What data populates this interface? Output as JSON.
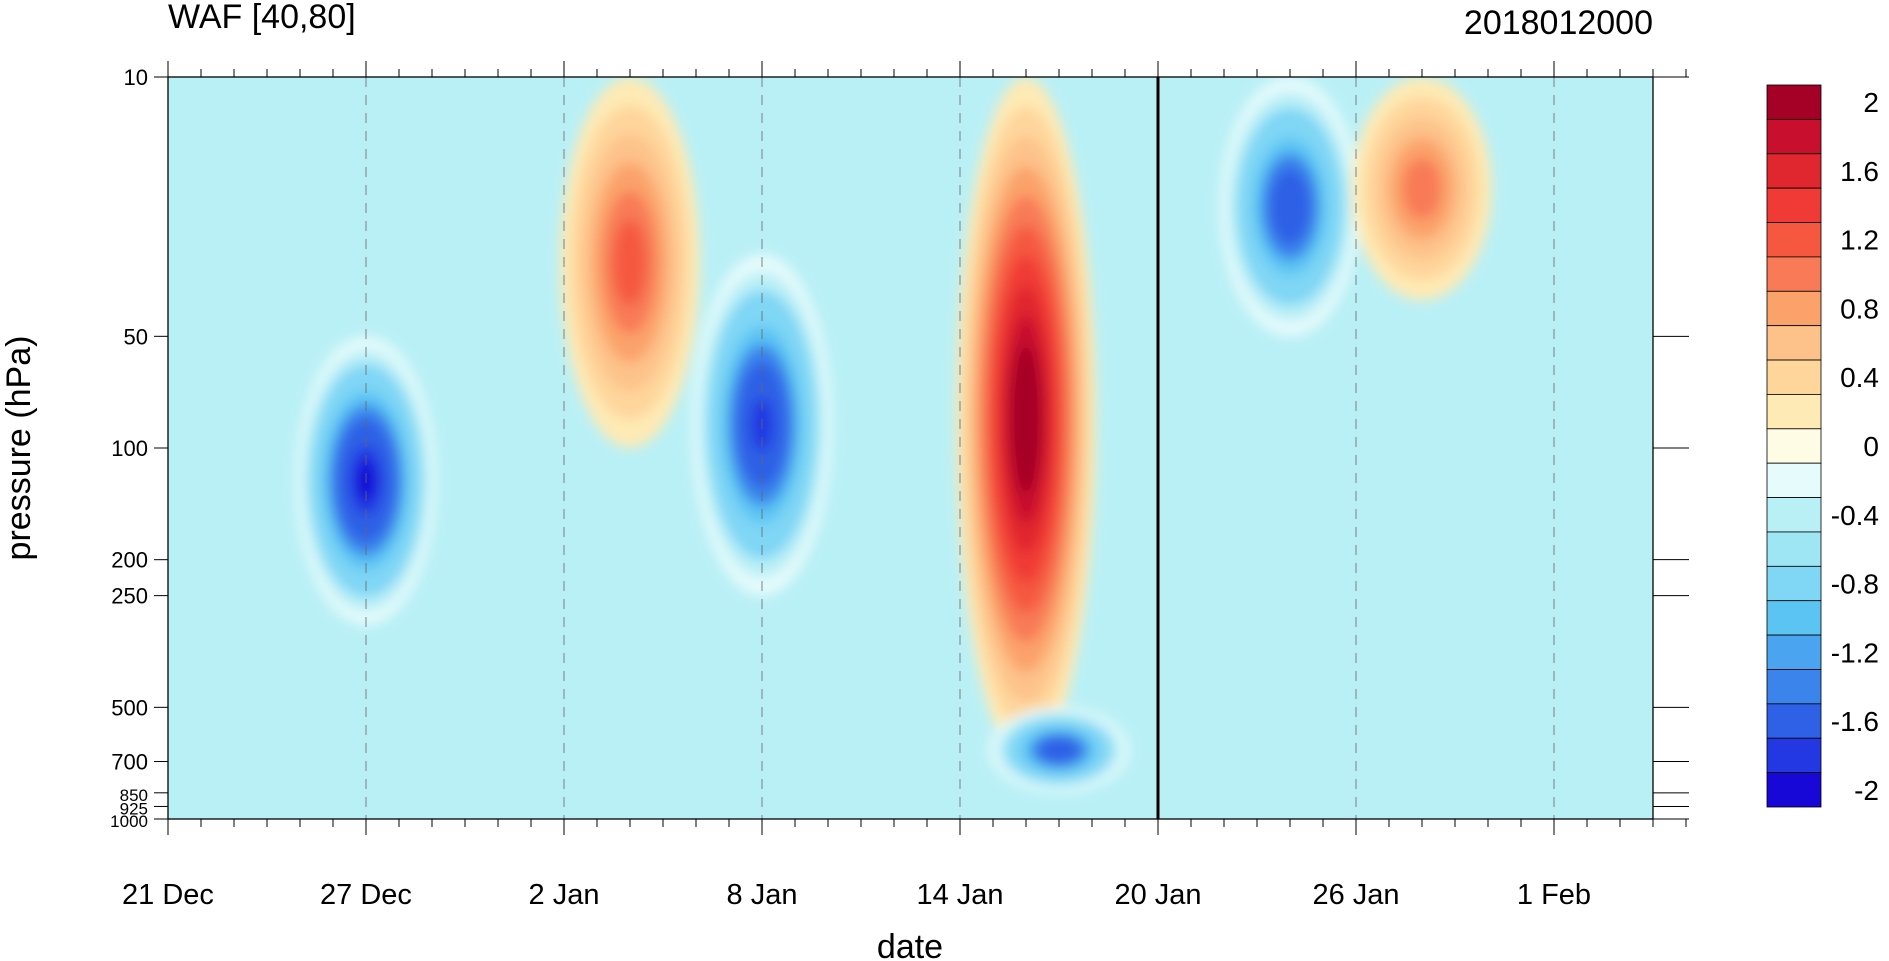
{
  "chart_data": {
    "type": "heatmap",
    "title": "WAF [40,80]",
    "subtitle": "2018012000",
    "xlabel": "date",
    "ylabel": "pressure (hPa)",
    "x_ticks": [
      "21 Dec",
      "27 Dec",
      "2 Jan",
      "8 Jan",
      "14 Jan",
      "20 Jan",
      "26 Jan",
      "1 Feb"
    ],
    "x_range": [
      "21 Dec",
      "5 Feb"
    ],
    "current_date": "20 Jan",
    "y_scale": "log",
    "y_ticks": [
      10,
      50,
      100,
      200,
      250,
      500,
      700,
      850,
      925,
      1000
    ],
    "y_range": [
      10,
      1000
    ],
    "colorbar": {
      "labels": [
        "2",
        "1.6",
        "1.2",
        "0.8",
        "0.4",
        "0",
        "-0.4",
        "-0.8",
        "-1.2",
        "-1.6",
        "-2"
      ],
      "levels": [
        2.0,
        1.8,
        1.6,
        1.4,
        1.2,
        1.0,
        0.8,
        0.6,
        0.4,
        0.2,
        0.0,
        -0.2,
        -0.4,
        -0.6,
        -0.8,
        -1.0,
        -1.2,
        -1.4,
        -1.6,
        -1.8,
        -2.0
      ],
      "colors": [
        "#a50026",
        "#c8102e",
        "#e0262f",
        "#f03a35",
        "#f5583f",
        "#f87a56",
        "#fba26a",
        "#fdc28a",
        "#fed59b",
        "#feeab4",
        "#fffce5",
        "#e6fbfc",
        "#b9f0f6",
        "#9fe6f5",
        "#7fd6f5",
        "#5cc4f3",
        "#4aa4ef",
        "#3b84eb",
        "#2f61e6",
        "#2337e2",
        "#1808d8"
      ]
    },
    "grid": "dashed vertical lines at date ticks",
    "features": [
      {
        "name": "negative",
        "date": "27 Dec",
        "p_top": 50,
        "p_bottom": 300,
        "peak": -2.0
      },
      {
        "name": "positive",
        "date": "4 Jan",
        "p_top": 10,
        "p_bottom": 100,
        "peak": 1.2
      },
      {
        "name": "negative",
        "date": "8 Jan",
        "p_top": 30,
        "p_bottom": 250,
        "peak": -1.8
      },
      {
        "name": "positive",
        "date": "16 Jan",
        "p_top": 10,
        "p_bottom": 700,
        "peak": 2.2
      },
      {
        "name": "negative",
        "date": "17 Jan",
        "p_top": 500,
        "p_bottom": 850,
        "peak": -1.6
      },
      {
        "name": "negative",
        "date": "24 Jan",
        "p_top": 10,
        "p_bottom": 50,
        "peak": -1.6
      },
      {
        "name": "positive",
        "date": "28 Jan",
        "p_top": 10,
        "p_bottom": 40,
        "peak": 1.0
      }
    ]
  }
}
